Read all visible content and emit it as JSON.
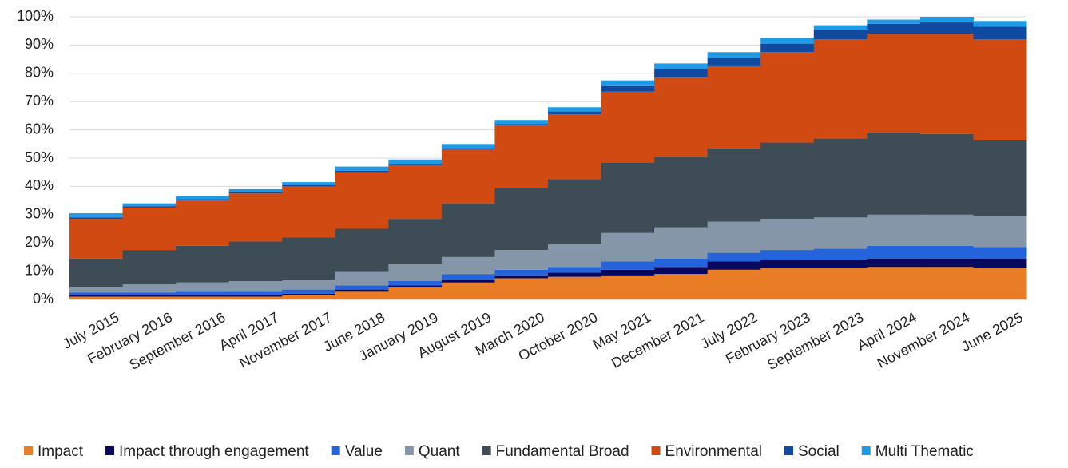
{
  "chart_data": {
    "type": "stacked_bar",
    "categories": [
      "July 2015",
      "February 2016",
      "September 2016",
      "April 2017",
      "November 2017",
      "June 2018",
      "January 2019",
      "August 2019",
      "March 2020",
      "October 2020",
      "May 2021",
      "December 2021",
      "July 2022",
      "February 2023",
      "September 2023",
      "April 2024",
      "November 2024",
      "June 2025"
    ],
    "series": [
      {
        "name": "Impact",
        "color": "#e87d25",
        "values": [
          1,
          1,
          1,
          1,
          1.5,
          3,
          4.5,
          6,
          7.5,
          8,
          8.5,
          9,
          10.5,
          11,
          11,
          11.5,
          11.5,
          11
        ]
      },
      {
        "name": "Impact through engagement",
        "color": "#08085c",
        "values": [
          0.5,
          0.5,
          0.5,
          0.5,
          0.5,
          0.5,
          0.5,
          1,
          1,
          1.5,
          2,
          2.5,
          3,
          3,
          3,
          3,
          3,
          3.5
        ]
      },
      {
        "name": "Value",
        "color": "#2463d9",
        "values": [
          1,
          1,
          1.5,
          1.5,
          1.5,
          1.5,
          1.5,
          2,
          2,
          2,
          3,
          3,
          3,
          3.5,
          4,
          4.5,
          4.5,
          4
        ]
      },
      {
        "name": "Quant",
        "color": "#8596a8",
        "values": [
          2,
          3,
          3,
          3.5,
          3.5,
          5,
          6,
          6,
          7,
          8,
          10,
          11,
          11,
          11,
          11,
          11,
          11,
          11
        ]
      },
      {
        "name": "Fundamental Broad",
        "color": "#3e4c56",
        "values": [
          10,
          12,
          13,
          14,
          15,
          15,
          16,
          19,
          22,
          23,
          25,
          25,
          26,
          27,
          28,
          29,
          28.5,
          27
        ]
      },
      {
        "name": "Environmental",
        "color": "#d04a12",
        "values": [
          14,
          15,
          16,
          17,
          18,
          20,
          19,
          19,
          22,
          23,
          25,
          28,
          29,
          32,
          35,
          35,
          35.5,
          35.5
        ]
      },
      {
        "name": "Social",
        "color": "#0f4aa0",
        "values": [
          0.5,
          0.5,
          0.5,
          0.5,
          0.5,
          0.5,
          0.5,
          0.5,
          0.5,
          1,
          2,
          3,
          3,
          3,
          3.5,
          3.5,
          4,
          4.5
        ]
      },
      {
        "name": "Multi Thematic",
        "color": "#1f9be6",
        "values": [
          1.5,
          1,
          1,
          1,
          1,
          1.5,
          1.5,
          1.5,
          1.5,
          1.5,
          2,
          2,
          2,
          2,
          1.5,
          1.5,
          2,
          2
        ]
      }
    ],
    "ylim": [
      0,
      100
    ],
    "yticks": [
      {
        "value": 0,
        "label": "0%"
      },
      {
        "value": 10,
        "label": "10%"
      },
      {
        "value": 20,
        "label": "20%"
      },
      {
        "value": 30,
        "label": "30%"
      },
      {
        "value": 40,
        "label": "40%"
      },
      {
        "value": 50,
        "label": "50%"
      },
      {
        "value": 60,
        "label": "60%"
      },
      {
        "value": 70,
        "label": "70%"
      },
      {
        "value": 80,
        "label": "80%"
      },
      {
        "value": 90,
        "label": "90%"
      },
      {
        "value": 100,
        "label": "100%"
      }
    ],
    "grid": true,
    "legend": "bottom"
  }
}
